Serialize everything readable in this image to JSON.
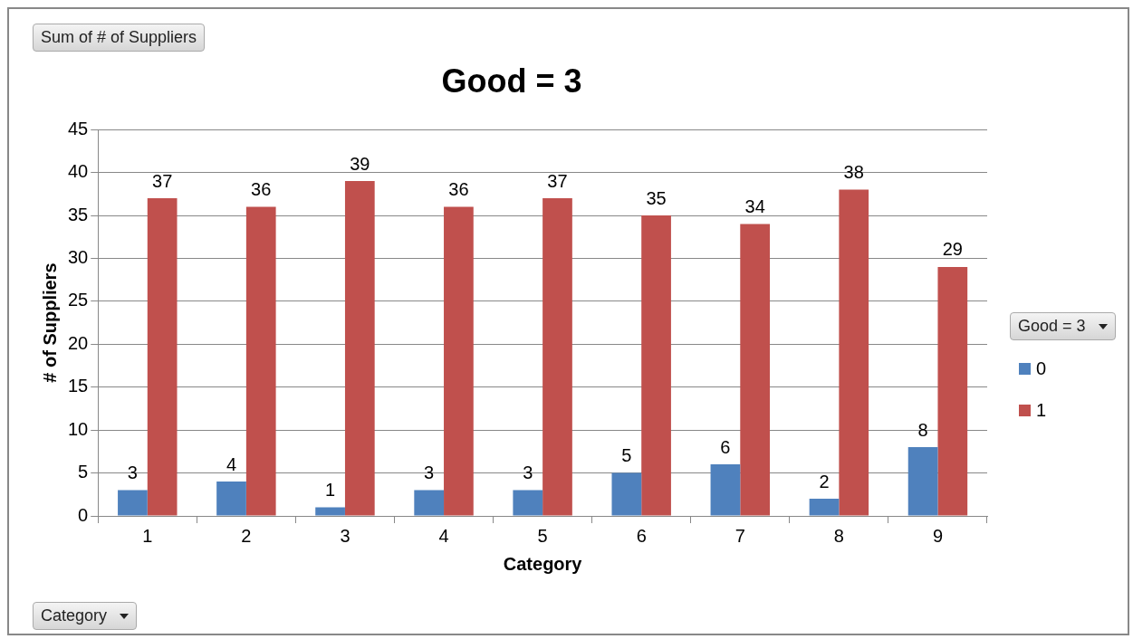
{
  "chart_data": {
    "type": "bar",
    "title": "Good = 3",
    "xlabel": "Category",
    "ylabel": "# of Suppliers",
    "legend_title": "Good = 3",
    "annotations": [
      "Sum of # of Suppliers",
      "Category"
    ],
    "categories": [
      "1",
      "2",
      "3",
      "4",
      "5",
      "6",
      "7",
      "8",
      "9"
    ],
    "series": [
      {
        "name": "0",
        "color": "#4f81bd",
        "values": [
          3,
          4,
          1,
          3,
          3,
          5,
          6,
          2,
          8
        ]
      },
      {
        "name": "1",
        "color": "#c0504d",
        "values": [
          37,
          36,
          39,
          36,
          37,
          35,
          34,
          38,
          29
        ]
      }
    ],
    "ylim": [
      0,
      45
    ],
    "yticks": [
      0,
      5,
      10,
      15,
      20,
      25,
      30,
      35,
      40,
      45
    ],
    "grid": "y",
    "legend": "right",
    "data_labels": true
  }
}
